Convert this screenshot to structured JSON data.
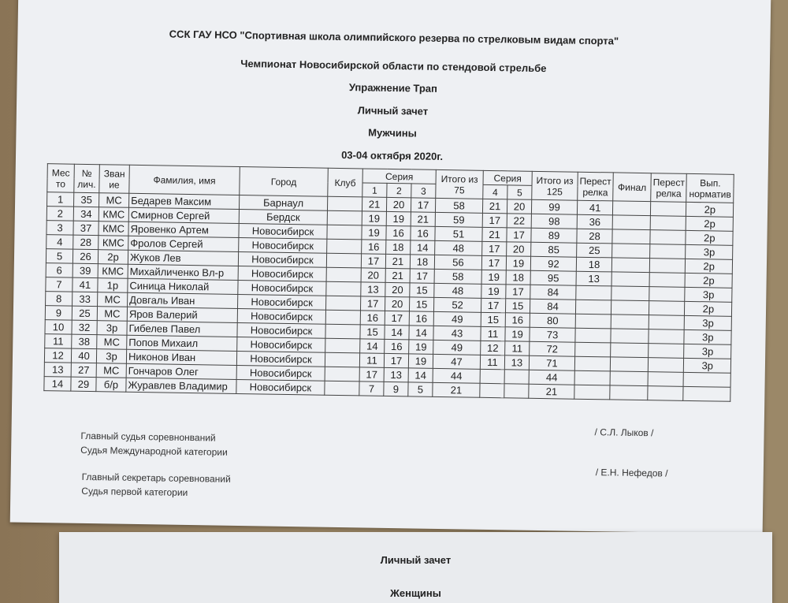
{
  "header": {
    "org": "ССК ГАУ НСО \"Спортивная школа олимпийского резерва по стрелковым видам спорта\"",
    "championship": "Чемпионат Новосибирской области по стендовой стрельбе",
    "exercise": "Упражнение Трап",
    "ranking": "Личный зачет",
    "category": "Мужчины",
    "date": "03-04 октября 2020г."
  },
  "table": {
    "columns": [
      "Мес то",
      "№ лич.",
      "Зван ие",
      "Фамилия, имя",
      "Город",
      "Клуб",
      "Серия",
      "Итого из 75",
      "Серия",
      "Итого из 125",
      "Перест релка",
      "Финал",
      "Перест релка",
      "Вып. норматив"
    ],
    "series_a": [
      1,
      2,
      3
    ],
    "series_b": [
      4,
      5
    ],
    "rows": [
      [
        1,
        35,
        "МС",
        "Бедарев Максим",
        "Барнаул",
        null,
        21,
        20,
        17,
        58,
        21,
        20,
        99,
        41,
        null,
        null,
        "2р"
      ],
      [
        2,
        34,
        "КМС",
        "Смирнов Сергей",
        "Бердск",
        null,
        19,
        19,
        21,
        59,
        17,
        22,
        98,
        36,
        null,
        null,
        "2р"
      ],
      [
        3,
        37,
        "КМС",
        "Яровенко Артем",
        "Новосибирск",
        null,
        19,
        16,
        16,
        51,
        21,
        17,
        89,
        28,
        null,
        null,
        "2р"
      ],
      [
        4,
        28,
        "КМС",
        "Фролов Сергей",
        "Новосибирск",
        null,
        16,
        18,
        14,
        48,
        17,
        20,
        85,
        25,
        null,
        null,
        "3р"
      ],
      [
        5,
        26,
        "2р",
        "Жуков Лев",
        "Новосибирск",
        null,
        17,
        21,
        18,
        56,
        17,
        19,
        92,
        18,
        null,
        null,
        "2р"
      ],
      [
        6,
        39,
        "КМС",
        "Михайличенко Вл-р",
        "Новосибирск",
        null,
        20,
        21,
        17,
        58,
        19,
        18,
        95,
        13,
        null,
        null,
        "2р"
      ],
      [
        7,
        41,
        "1р",
        "Синица Николай",
        "Новосибирск",
        null,
        13,
        20,
        15,
        48,
        19,
        17,
        84,
        null,
        null,
        null,
        "3р"
      ],
      [
        8,
        33,
        "МС",
        "Довгаль Иван",
        "Новосибирск",
        null,
        17,
        20,
        15,
        52,
        17,
        15,
        84,
        null,
        null,
        null,
        "2р"
      ],
      [
        9,
        25,
        "МС",
        "Яров Валерий",
        "Новосибирск",
        null,
        16,
        17,
        16,
        49,
        15,
        16,
        80,
        null,
        null,
        null,
        "3р"
      ],
      [
        10,
        32,
        "3р",
        "Гибелев Павел",
        "Новосибирск",
        null,
        15,
        14,
        14,
        43,
        11,
        19,
        73,
        null,
        null,
        null,
        "3р"
      ],
      [
        11,
        38,
        "МС",
        "Попов Михаил",
        "Новосибирск",
        null,
        14,
        16,
        19,
        49,
        12,
        11,
        72,
        null,
        null,
        null,
        "3р"
      ],
      [
        12,
        40,
        "3р",
        "Никонов Иван",
        "Новосибирск",
        null,
        11,
        17,
        19,
        47,
        11,
        13,
        71,
        null,
        null,
        null,
        "3р"
      ],
      [
        13,
        27,
        "МС",
        "Гончаров Олег",
        "Новосибирск",
        null,
        17,
        13,
        14,
        44,
        null,
        null,
        44,
        null,
        null,
        null,
        null
      ],
      [
        14,
        29,
        "б/р",
        "Журавлев Владимир",
        "Новосибирск",
        null,
        7,
        9,
        5,
        21,
        null,
        null,
        21,
        null,
        null,
        null,
        null
      ]
    ]
  },
  "footer": {
    "judge_title": "Главный судья соревнонваний",
    "judge_category": "Судья Международной категории",
    "judge_name": "/ С.Л. Лыков /",
    "secretary_title": "Главный секретарь соревнований",
    "secretary_category": "Судья первой категории",
    "secretary_name": "/ Е.Н. Нефедов /"
  },
  "next_sheet": {
    "ranking": "Личный зачет",
    "category": "Женщины"
  }
}
